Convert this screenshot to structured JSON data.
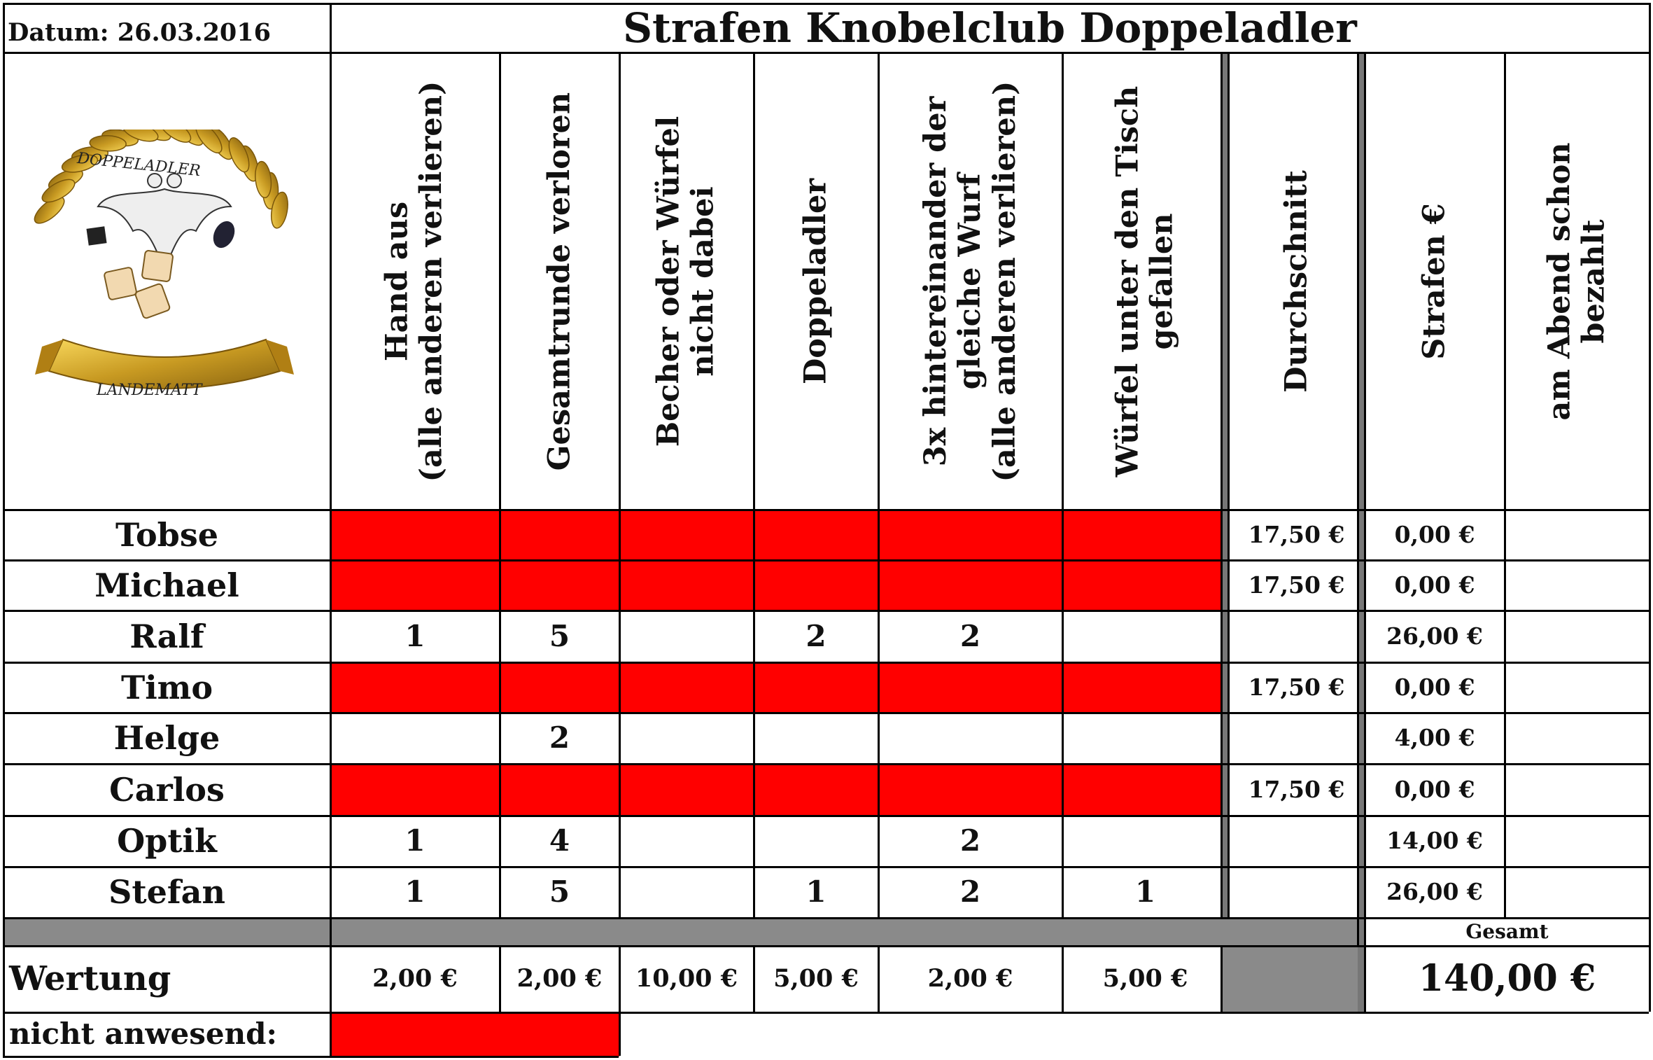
{
  "header": {
    "date_label": "Datum: 26.03.2016",
    "title": "Strafen Knobelclub Doppeladler"
  },
  "logo": {
    "top_text": "DOPPELADLER",
    "bottom_text": "LANDEMATT"
  },
  "columns": [
    {
      "lines": [
        "Hand aus",
        "(alle anderen verlieren)"
      ]
    },
    {
      "lines": [
        "Gesamtrunde verloren"
      ]
    },
    {
      "lines": [
        "Becher oder Würfel",
        "nicht dabei"
      ]
    },
    {
      "lines": [
        "Doppeladler"
      ]
    },
    {
      "lines": [
        "3x hintereinander der",
        "gleiche Wurf",
        "(alle anderen verlieren)"
      ]
    },
    {
      "lines": [
        "Würfel unter den Tisch",
        "gefallen"
      ]
    },
    {
      "lines": [
        "Durchschnitt"
      ]
    },
    {
      "lines": [
        "Strafen €"
      ]
    },
    {
      "lines": [
        "am Abend schon",
        "bezahlt"
      ]
    }
  ],
  "rows": [
    {
      "name": "Tobse",
      "absent": true,
      "values": [
        "",
        "",
        "",
        "",
        "",
        ""
      ],
      "average": "17,50 €",
      "fine": "0,00 €",
      "paid": ""
    },
    {
      "name": "Michael",
      "absent": true,
      "values": [
        "",
        "",
        "",
        "",
        "",
        ""
      ],
      "average": "17,50 €",
      "fine": "0,00 €",
      "paid": ""
    },
    {
      "name": "Ralf",
      "absent": false,
      "values": [
        "1",
        "5",
        "",
        "2",
        "2",
        ""
      ],
      "average": "",
      "fine": "26,00 €",
      "paid": ""
    },
    {
      "name": "Timo",
      "absent": true,
      "values": [
        "",
        "",
        "",
        "",
        "",
        ""
      ],
      "average": "17,50 €",
      "fine": "0,00 €",
      "paid": ""
    },
    {
      "name": "Helge",
      "absent": false,
      "values": [
        "",
        "2",
        "",
        "",
        "",
        ""
      ],
      "average": "",
      "fine": "4,00 €",
      "paid": ""
    },
    {
      "name": "Carlos",
      "absent": true,
      "values": [
        "",
        "",
        "",
        "",
        "",
        ""
      ],
      "average": "17,50 €",
      "fine": "0,00 €",
      "paid": ""
    },
    {
      "name": "Optik",
      "absent": false,
      "values": [
        "1",
        "4",
        "",
        "",
        "2",
        ""
      ],
      "average": "",
      "fine": "14,00 €",
      "paid": ""
    },
    {
      "name": "Stefan",
      "absent": false,
      "values": [
        "1",
        "5",
        "",
        "1",
        "2",
        "1"
      ],
      "average": "",
      "fine": "26,00 €",
      "paid": ""
    }
  ],
  "totals": {
    "label": "Gesamt",
    "value": "140,00 €"
  },
  "rating": {
    "label": "Wertung",
    "values": [
      "2,00 €",
      "2,00 €",
      "10,00 €",
      "5,00 €",
      "2,00 €",
      "5,00 €"
    ]
  },
  "legend": {
    "absent_label": "nicht anwesend:"
  },
  "colors": {
    "absent": "#ff0000",
    "separator": "#8a8a8a",
    "logo_gold": "#c89a22"
  }
}
